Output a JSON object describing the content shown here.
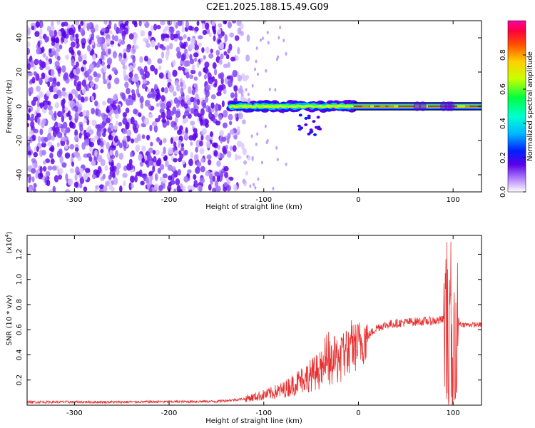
{
  "title": "C2E1.2025.188.15.49.G09",
  "chart_data": [
    {
      "type": "heatmap",
      "xlabel": "Height of straight line (km)",
      "ylabel": "Frequency (Hz)",
      "xlim": [
        -350,
        130
      ],
      "ylim": [
        -50,
        50
      ],
      "x_ticks": [
        "-300",
        "-200",
        "-100",
        "0",
        "100"
      ],
      "y_ticks": [
        "-40",
        "-20",
        "0",
        "20",
        "40"
      ],
      "colorbar": {
        "label": "Normalized spectral amplitude",
        "range": [
          0,
          1
        ],
        "ticks": [
          "0.0",
          "0.2",
          "0.4",
          "0.6",
          "0.8"
        ]
      },
      "signal_band": {
        "start_km": -135,
        "end_km": 130,
        "frequency_hz": 0,
        "noise_region_km": [
          -350,
          -120
        ]
      }
    },
    {
      "type": "line",
      "xlabel": "Height of straight line (km)",
      "ylabel": "SNR (10 * v/v)",
      "y_scale_label": "(x10",
      "y_scale_exp": "4",
      "xlim": [
        -350,
        130
      ],
      "ylim": [
        0,
        1.35
      ],
      "x_ticks": [
        "-300",
        "-200",
        "-100",
        "0",
        "100"
      ],
      "y_ticks": [
        "0.2",
        "0.4",
        "0.6",
        "0.8",
        "1.0",
        "1.2"
      ],
      "line_color": "#e83030",
      "profile": {
        "x": [
          -350,
          -250,
          -150,
          -120,
          -100,
          -80,
          -60,
          -40,
          -20,
          0,
          20,
          30,
          50,
          80,
          90,
          95,
          100,
          105,
          110,
          130
        ],
        "y": [
          0.025,
          0.025,
          0.03,
          0.05,
          0.08,
          0.12,
          0.2,
          0.28,
          0.38,
          0.48,
          0.62,
          0.64,
          0.66,
          0.67,
          0.68,
          0.5,
          0.1,
          0.66,
          0.64,
          0.64
        ]
      }
    }
  ]
}
